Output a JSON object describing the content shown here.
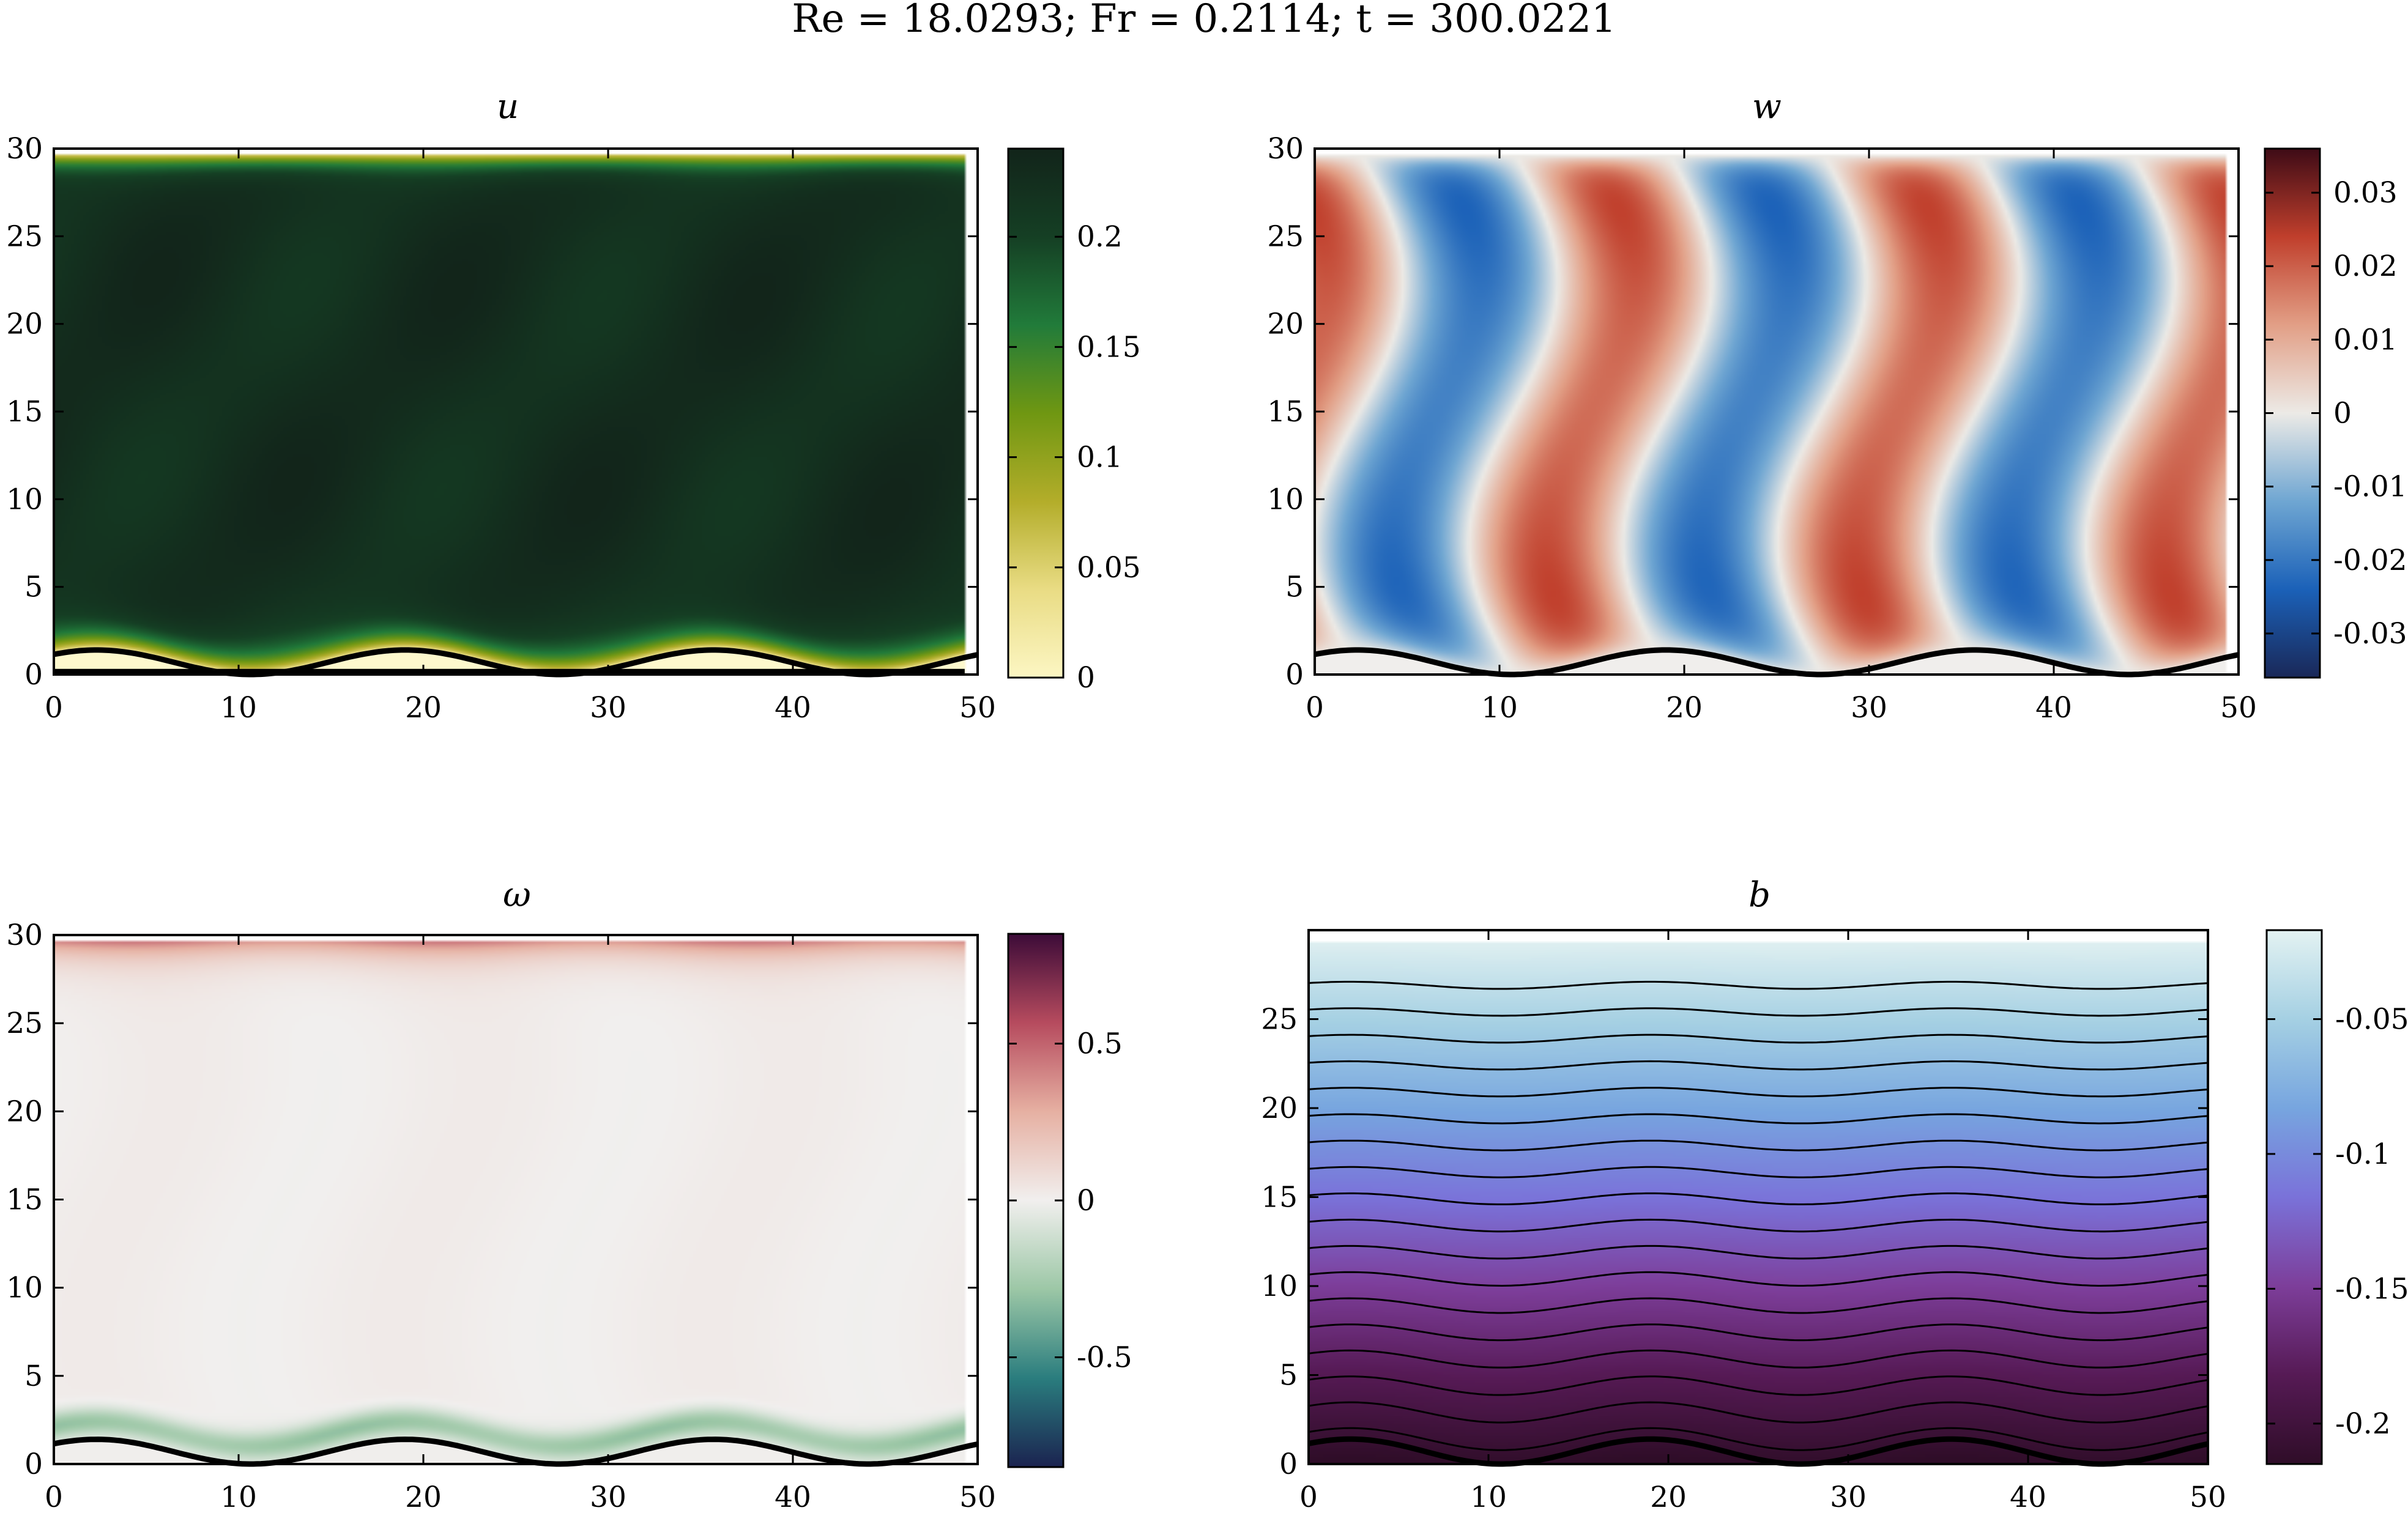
{
  "figure": {
    "suptitle": "Re = 18.0293; Fr = 0.2114; t = 300.0221"
  },
  "chart_data": [
    {
      "type": "heatmap",
      "title": "u",
      "xlabel": "",
      "ylabel": "",
      "xlim": [
        0,
        50
      ],
      "ylim": [
        0,
        30
      ],
      "xticks": [
        "0",
        "10",
        "20",
        "30",
        "40",
        "50"
      ],
      "yticks": [
        "0",
        "5",
        "10",
        "15",
        "20",
        "25",
        "30"
      ],
      "colorbar": {
        "range": [
          0,
          0.24
        ],
        "ticks": [
          "0",
          "0.05",
          "0.1",
          "0.15",
          "0.2"
        ],
        "colors": [
          "#fcf6c3",
          "#e9dc84",
          "#b3ad2a",
          "#6f9712",
          "#217b3a",
          "#153f24",
          "#12241a"
        ]
      },
      "field": "near-uniform ≈0.22 in interior, dropping to 0 in thin boundary layers at the wavy bottom and the top lid",
      "boundary": "sinusoidal bottom, amplitude ≈0.7 about z≈0.7, wavelength ≈16.7"
    },
    {
      "type": "heatmap",
      "title": "w",
      "xlabel": "",
      "ylabel": "",
      "xlim": [
        0,
        50
      ],
      "ylim": [
        0,
        30
      ],
      "xticks": [
        "0",
        "10",
        "20",
        "30",
        "40",
        "50"
      ],
      "yticks": [
        "0",
        "5",
        "10",
        "15",
        "20",
        "25",
        "30"
      ],
      "colorbar": {
        "range": [
          -0.036,
          0.036
        ],
        "ticks": [
          "-0.03",
          "-0.02",
          "-0.01",
          "0",
          "0.01",
          "0.02",
          "0.03"
        ],
        "colors": [
          "#1a2858",
          "#1b61b8",
          "#6fa6d2",
          "#eceae6",
          "#e29f86",
          "#c03f2c",
          "#3e0b16"
        ]
      },
      "field": "alternating tilted columns of positive/negative vertical velocity with 3 wavelengths across the domain; amplitude ≈0.025",
      "boundary": "sinusoidal bottom, amplitude ≈0.7 about z≈0.7, wavelength ≈16.7"
    },
    {
      "type": "heatmap",
      "title": "ω",
      "xlabel": "",
      "ylabel": "",
      "xlim": [
        0,
        50
      ],
      "ylim": [
        0,
        30
      ],
      "xticks": [
        "0",
        "10",
        "20",
        "30",
        "40",
        "50"
      ],
      "yticks": [
        "0",
        "5",
        "10",
        "15",
        "20",
        "25",
        "30"
      ],
      "colorbar": {
        "range": [
          -0.85,
          0.85
        ],
        "ticks": [
          "-0.5",
          "0",
          "0.5"
        ],
        "colors": [
          "#1b2350",
          "#2a7d7e",
          "#9cc7a6",
          "#f1efee",
          "#e6b0a2",
          "#b64b5e",
          "#3c0b38"
        ]
      },
      "field": "≈0 in interior, positive ≈0.4 near the top lid, negative ≈-0.3 in layer just above the wavy bottom",
      "boundary": "sinusoidal bottom, amplitude ≈0.7 about z≈0.7, wavelength ≈16.7"
    },
    {
      "type": "heatmap",
      "title": "b",
      "xlabel": "",
      "ylabel": "",
      "xlim": [
        0,
        50
      ],
      "ylim": [
        0,
        30
      ],
      "xticks": [
        "0",
        "10",
        "20",
        "30",
        "40",
        "50"
      ],
      "yticks": [
        "0",
        "5",
        "10",
        "15",
        "20",
        "25"
      ],
      "colorbar": {
        "range": [
          -0.215,
          -0.017
        ],
        "ticks": [
          "-0.2",
          "-0.15",
          "-0.1",
          "-0.05"
        ],
        "colors": [
          "#2f0d28",
          "#561a55",
          "#7d3e9a",
          "#7a72d9",
          "#77a5df",
          "#a5d0e3",
          "#e3f2f2"
        ]
      },
      "field": "stably stratified buoyancy increasing upward; contour lines every ≈1.5 units of depth with weak waviness matching the topography",
      "contours": 19,
      "boundary": "sinusoidal bottom, amplitude ≈0.7 about z≈0.7, wavelength ≈16.7"
    }
  ]
}
